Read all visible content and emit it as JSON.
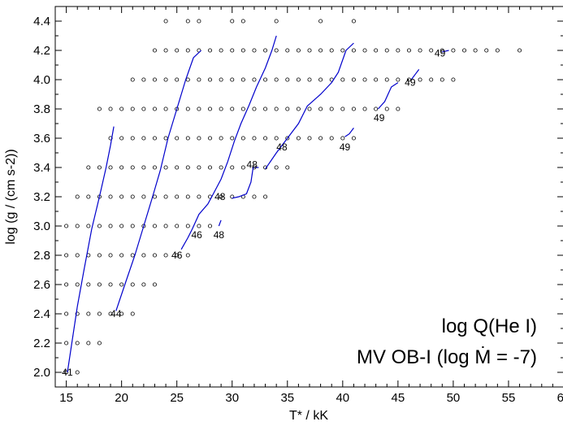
{
  "chart_data": {
    "type": "scatter",
    "title": "",
    "xlabel": "T* / kK",
    "ylabel": "log (g / (cm s-2))",
    "xlim": [
      14,
      60
    ],
    "ylim": [
      1.9,
      4.5
    ],
    "x_ticks": [
      15,
      20,
      25,
      30,
      35,
      40,
      45,
      50,
      55,
      60
    ],
    "y_ticks": [
      2.0,
      2.2,
      2.4,
      2.6,
      2.8,
      3.0,
      3.2,
      3.4,
      3.6,
      3.8,
      4.0,
      4.2,
      4.4
    ],
    "x_tick_labels": [
      "15",
      "20",
      "25",
      "30",
      "35",
      "40",
      "45",
      "50",
      "55",
      "60"
    ],
    "y_tick_labels": [
      "2.0",
      "2.2",
      "2.4",
      "2.6",
      "2.8",
      "3.0",
      "3.2",
      "3.4",
      "3.6",
      "3.8",
      "4.0",
      "4.2",
      "4.4"
    ],
    "grid": false,
    "annotations": {
      "line1": "log Q(He I)",
      "line2": "MV OB-I (log Ṁ = -7)"
    },
    "grid_models": [
      {
        "logg": 4.4,
        "T": [
          24,
          26,
          27,
          30,
          31,
          34,
          38,
          41
        ]
      },
      {
        "logg": 4.2,
        "T": [
          23,
          24,
          25,
          26,
          27,
          28,
          29,
          30,
          31,
          32,
          33,
          34,
          35,
          36,
          37,
          38,
          39,
          40,
          41,
          42,
          43,
          44,
          45,
          46,
          47,
          48,
          49,
          50,
          51,
          52,
          53,
          54,
          56
        ]
      },
      {
        "logg": 4.0,
        "T": [
          21,
          22,
          23,
          24,
          25,
          26,
          27,
          28,
          29,
          30,
          31,
          32,
          33,
          34,
          35,
          36,
          37,
          38,
          39,
          40,
          41,
          42,
          43,
          44,
          45,
          46,
          47,
          48,
          49,
          50
        ]
      },
      {
        "logg": 3.8,
        "T": [
          18,
          19,
          20,
          21,
          22,
          23,
          24,
          25,
          26,
          27,
          28,
          29,
          30,
          31,
          32,
          33,
          34,
          35,
          36,
          37,
          38,
          39,
          40,
          41,
          42,
          43,
          44,
          45
        ]
      },
      {
        "logg": 3.6,
        "T": [
          19,
          20,
          21,
          22,
          23,
          24,
          25,
          26,
          27,
          28,
          29,
          30,
          31,
          32,
          33,
          34,
          35,
          36,
          37,
          38,
          39,
          40,
          41
        ]
      },
      {
        "logg": 3.4,
        "T": [
          17,
          18,
          19,
          20,
          21,
          22,
          23,
          24,
          25,
          26,
          27,
          28,
          29,
          30,
          31,
          32,
          33,
          34,
          35
        ]
      },
      {
        "logg": 3.2,
        "T": [
          16,
          17,
          18,
          19,
          20,
          21,
          22,
          23,
          24,
          25,
          26,
          27,
          28,
          29,
          30,
          31,
          32,
          33
        ]
      },
      {
        "logg": 3.0,
        "T": [
          15,
          16,
          17,
          18,
          19,
          20,
          21,
          22,
          23,
          24,
          25,
          26,
          27,
          28
        ]
      },
      {
        "logg": 2.8,
        "T": [
          15,
          16,
          17,
          18,
          19,
          20,
          21,
          22,
          23,
          24,
          25,
          26
        ]
      },
      {
        "logg": 2.6,
        "T": [
          15,
          16,
          17,
          18,
          19,
          20,
          21,
          22,
          23
        ]
      },
      {
        "logg": 2.4,
        "T": [
          15,
          16,
          17,
          18,
          19,
          20,
          21
        ]
      },
      {
        "logg": 2.2,
        "T": [
          15,
          16,
          17,
          18
        ]
      },
      {
        "logg": 2.0,
        "T": [
          15,
          16
        ]
      }
    ],
    "contours": [
      {
        "label": "41",
        "points": [
          [
            15.1,
            2.0
          ],
          [
            15.5,
            2.2
          ],
          [
            16.0,
            2.45
          ],
          [
            16.6,
            2.7
          ],
          [
            17.3,
            2.98
          ],
          [
            18.0,
            3.2
          ],
          [
            18.6,
            3.4
          ],
          [
            19.0,
            3.55
          ],
          [
            19.3,
            3.68
          ]
        ]
      },
      {
        "label": "44",
        "points": [
          [
            19.5,
            2.42
          ],
          [
            20.3,
            2.6
          ],
          [
            21.2,
            2.8
          ],
          [
            22.0,
            3.0
          ],
          [
            22.8,
            3.2
          ],
          [
            23.5,
            3.38
          ],
          [
            24.2,
            3.6
          ],
          [
            25.0,
            3.8
          ],
          [
            25.8,
            4.0
          ],
          [
            26.5,
            4.15
          ],
          [
            27.2,
            4.2
          ]
        ]
      },
      {
        "label": "46",
        "points": [
          [
            25.4,
            2.84
          ],
          [
            26.0,
            2.92
          ],
          [
            26.4,
            2.98
          ],
          [
            27.0,
            3.08
          ],
          [
            27.8,
            3.15
          ],
          [
            28.3,
            3.22
          ],
          [
            29.0,
            3.32
          ],
          [
            29.6,
            3.44
          ],
          [
            30.2,
            3.58
          ],
          [
            30.8,
            3.7
          ],
          [
            31.5,
            3.82
          ],
          [
            32.2,
            3.95
          ],
          [
            33.0,
            4.08
          ],
          [
            33.6,
            4.2
          ],
          [
            34.0,
            4.3
          ]
        ]
      },
      {
        "label": "48",
        "points": [
          [
            28.8,
            3.0
          ],
          [
            29.0,
            3.04
          ]
        ]
      },
      {
        "label": "48",
        "points": [
          [
            30.0,
            3.19
          ],
          [
            30.6,
            3.2
          ],
          [
            31.3,
            3.22
          ],
          [
            31.7,
            3.3
          ],
          [
            31.9,
            3.4
          ],
          [
            32.4,
            3.4
          ]
        ]
      },
      {
        "label": "48",
        "points": [
          [
            33.0,
            3.39
          ],
          [
            34.0,
            3.5
          ],
          [
            35.0,
            3.6
          ],
          [
            36.0,
            3.7
          ],
          [
            36.8,
            3.82
          ],
          [
            38.0,
            3.9
          ],
          [
            39.0,
            3.98
          ],
          [
            39.6,
            4.05
          ],
          [
            40.3,
            4.2
          ],
          [
            41.0,
            4.25
          ]
        ]
      },
      {
        "label": "49",
        "points": [
          [
            40.2,
            3.61
          ],
          [
            40.6,
            3.63
          ],
          [
            41.0,
            3.67
          ]
        ]
      },
      {
        "label": "49",
        "points": [
          [
            43.2,
            3.8
          ],
          [
            43.8,
            3.85
          ],
          [
            44.4,
            3.95
          ],
          [
            45.0,
            3.98
          ]
        ]
      },
      {
        "label": "49",
        "points": [
          [
            46.2,
            4.0
          ],
          [
            46.6,
            4.04
          ],
          [
            46.9,
            4.07
          ]
        ]
      },
      {
        "label": "49",
        "points": [
          [
            49.0,
            4.19
          ],
          [
            49.6,
            4.2
          ]
        ]
      }
    ],
    "contour_labels": [
      {
        "text": "41",
        "x": 15.1,
        "y": 2.0
      },
      {
        "text": "44",
        "x": 19.5,
        "y": 2.4
      },
      {
        "text": "46",
        "x": 25.0,
        "y": 2.8
      },
      {
        "text": "46",
        "x": 26.8,
        "y": 2.94
      },
      {
        "text": "48",
        "x": 28.8,
        "y": 2.94
      },
      {
        "text": "48",
        "x": 28.9,
        "y": 3.2
      },
      {
        "text": "48",
        "x": 31.8,
        "y": 3.42
      },
      {
        "text": "48",
        "x": 34.5,
        "y": 3.54
      },
      {
        "text": "49",
        "x": 40.2,
        "y": 3.54
      },
      {
        "text": "49",
        "x": 43.3,
        "y": 3.74
      },
      {
        "text": "49",
        "x": 46.1,
        "y": 3.98
      },
      {
        "text": "49",
        "x": 48.8,
        "y": 4.18
      }
    ],
    "colors": {
      "contour": "#0000cc",
      "marker": "#000000"
    }
  }
}
